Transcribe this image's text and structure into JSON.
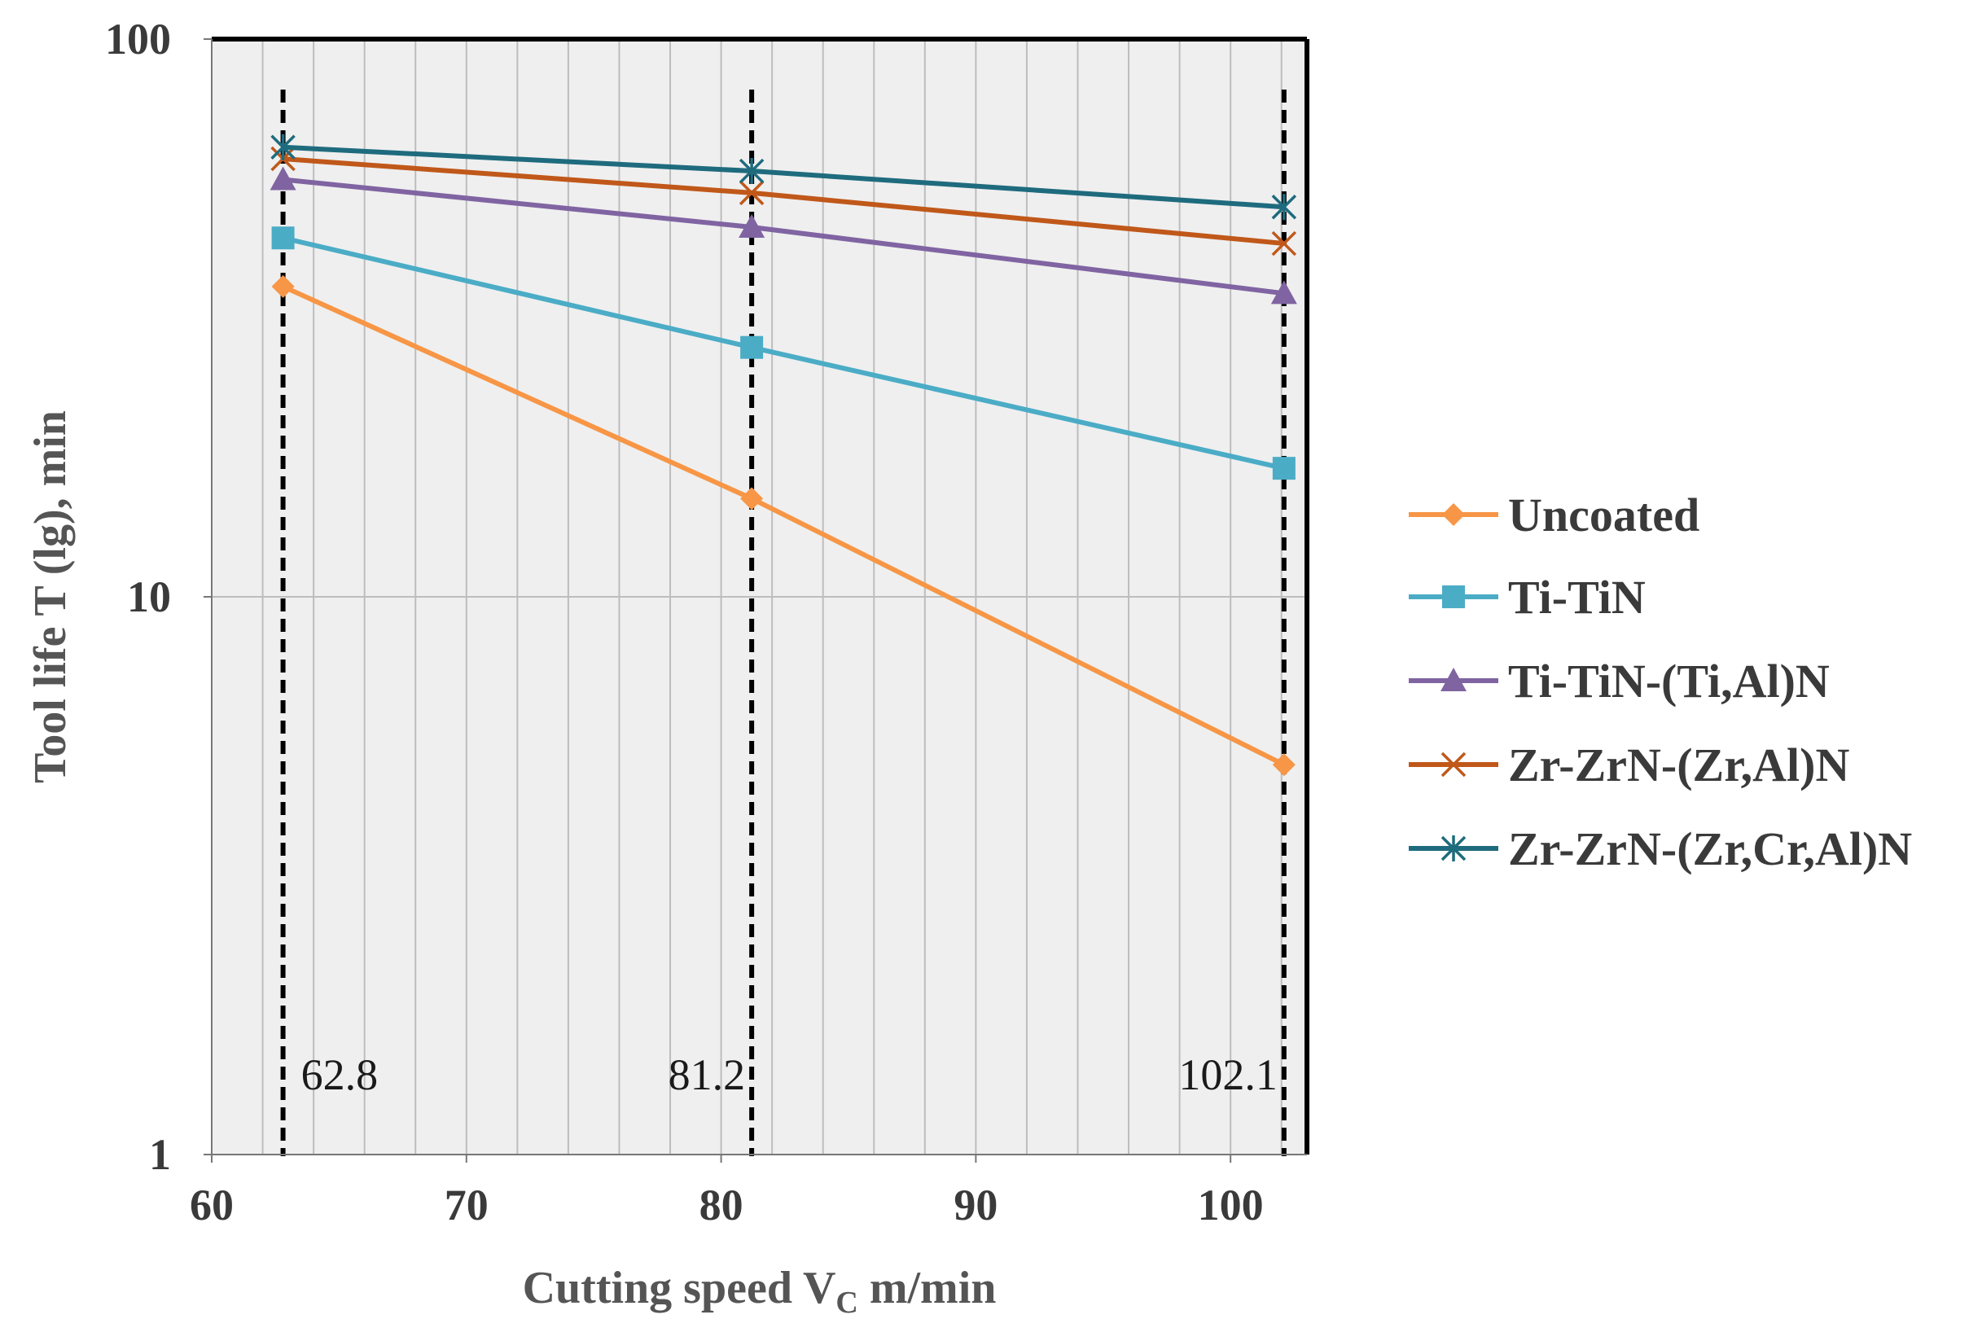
{
  "chart_data": {
    "type": "line",
    "title": "",
    "xlabel": "Cutting speed V",
    "xlabel_subscript": "C",
    "xlabel_suffix": " m/min",
    "ylabel": "Tool life T (lg), min",
    "xlim": [
      60,
      103
    ],
    "ylim": [
      1,
      100
    ],
    "yscale": "log",
    "grid": true,
    "legend_position": "right",
    "x_ticks": [
      "60",
      "70",
      "80",
      "90",
      "100"
    ],
    "y_ticks": [
      "1",
      "10",
      "100"
    ],
    "reference_lines": [
      {
        "x": 62.8,
        "label": "62.8"
      },
      {
        "x": 81.2,
        "label": "81.2"
      },
      {
        "x": 102.1,
        "label": "102.1"
      }
    ],
    "x": [
      62.8,
      81.2,
      102.1
    ],
    "series": [
      {
        "name": "Uncoated",
        "color": "#F79646",
        "marker": "diamond",
        "values": [
          36,
          15,
          5
        ]
      },
      {
        "name": "Ti-TiN",
        "color": "#4BACC6",
        "marker": "square",
        "values": [
          44,
          28,
          17
        ]
      },
      {
        "name": "Ti-TiN-(Ti,Al)N",
        "color": "#8064A2",
        "marker": "triangle",
        "values": [
          56,
          46,
          35
        ]
      },
      {
        "name": "Zr-ZrN-(Zr,Al)N",
        "color": "#C0581A",
        "marker": "x",
        "values": [
          61,
          53,
          43
        ]
      },
      {
        "name": "Zr-ZrN-(Zr,Cr,Al)N",
        "color": "#1F6B7E",
        "marker": "star",
        "values": [
          64,
          58,
          50
        ]
      }
    ]
  }
}
